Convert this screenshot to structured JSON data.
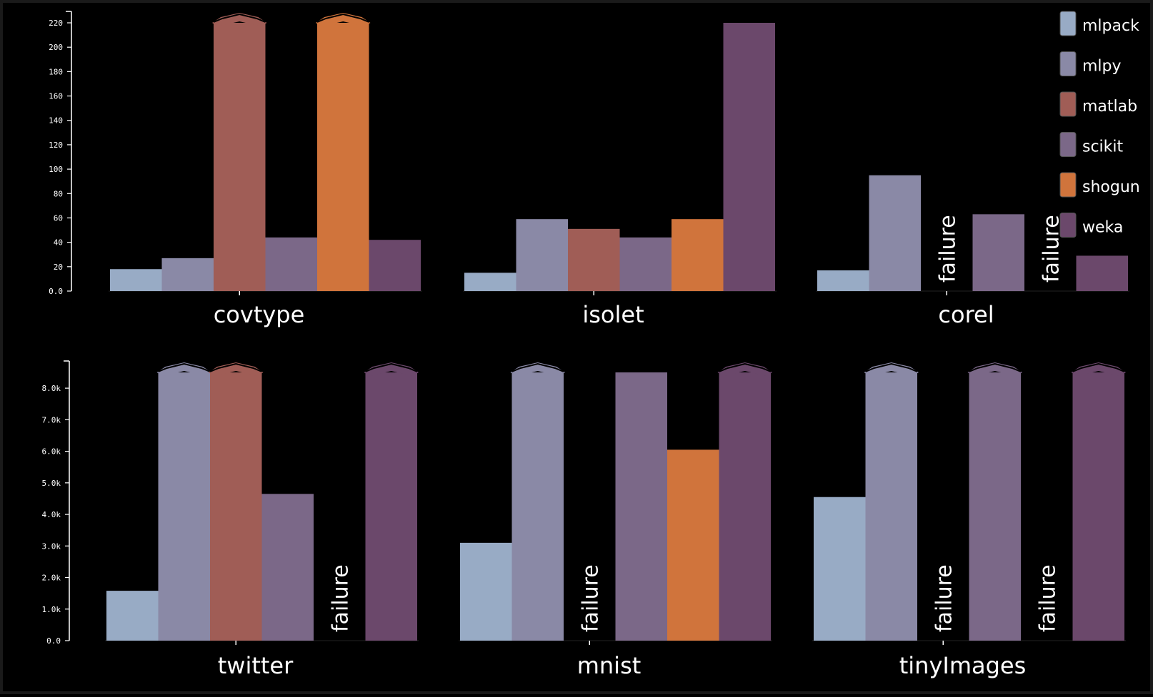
{
  "chart_data": [
    {
      "type": "bar",
      "ylim": [
        0,
        220
      ],
      "yticks": [
        "0.0",
        "20",
        "40",
        "60",
        "80",
        "100",
        "120",
        "140",
        "160",
        "180",
        "200",
        "220"
      ],
      "grid": false,
      "groups": [
        {
          "label": "covtype",
          "bars": [
            {
              "series": "mlpack",
              "value": 18
            },
            {
              "series": "mlpy",
              "value": 27
            },
            {
              "series": "matlab",
              "value": 220,
              "overflow": true
            },
            {
              "series": "scikit",
              "value": 44
            },
            {
              "series": "shogun",
              "value": 220,
              "overflow": true
            },
            {
              "series": "weka",
              "value": 42
            }
          ]
        },
        {
          "label": "isolet",
          "bars": [
            {
              "series": "mlpack",
              "value": 15
            },
            {
              "series": "mlpy",
              "value": 59
            },
            {
              "series": "matlab",
              "value": 51
            },
            {
              "series": "scikit",
              "value": 44
            },
            {
              "series": "shogun",
              "value": 59
            },
            {
              "series": "weka",
              "value": 220
            }
          ]
        },
        {
          "label": "corel",
          "bars": [
            {
              "series": "mlpack",
              "value": 17
            },
            {
              "series": "mlpy",
              "value": 95
            },
            {
              "series": "matlab",
              "failure": true
            },
            {
              "series": "scikit",
              "value": 63
            },
            {
              "series": "shogun",
              "failure": true
            },
            {
              "series": "weka",
              "value": 29
            }
          ]
        }
      ]
    },
    {
      "type": "bar",
      "ylim": [
        0,
        8500
      ],
      "yticks": [
        "0.0",
        "1.0k",
        "2.0k",
        "3.0k",
        "4.0k",
        "5.0k",
        "6.0k",
        "7.0k",
        "8.0k"
      ],
      "grid": false,
      "groups": [
        {
          "label": "twitter",
          "bars": [
            {
              "series": "mlpack",
              "value": 1580
            },
            {
              "series": "mlpy",
              "value": 8500,
              "overflow": true
            },
            {
              "series": "matlab",
              "value": 8500,
              "overflow": true
            },
            {
              "series": "scikit",
              "value": 4650
            },
            {
              "series": "shogun",
              "failure": true
            },
            {
              "series": "weka",
              "value": 8500,
              "overflow": true
            }
          ]
        },
        {
          "label": "mnist",
          "bars": [
            {
              "series": "mlpack",
              "value": 3100
            },
            {
              "series": "mlpy",
              "value": 8500,
              "overflow": true
            },
            {
              "series": "matlab",
              "failure": true
            },
            {
              "series": "scikit",
              "value": 8500
            },
            {
              "series": "shogun",
              "value": 6050
            },
            {
              "series": "weka",
              "value": 8500,
              "overflow": true
            }
          ]
        },
        {
          "label": "tinyImages",
          "bars": [
            {
              "series": "mlpack",
              "value": 4550
            },
            {
              "series": "mlpy",
              "value": 8500,
              "overflow": true
            },
            {
              "series": "matlab",
              "failure": true
            },
            {
              "series": "scikit",
              "value": 8500,
              "overflow": true
            },
            {
              "series": "shogun",
              "failure": true
            },
            {
              "series": "weka",
              "value": 8500,
              "overflow": true
            }
          ]
        }
      ]
    }
  ],
  "failure_text": "failure",
  "legend": {
    "placement": "top-right",
    "items": [
      {
        "name": "mlpack",
        "color": "#98abc5"
      },
      {
        "name": "mlpy",
        "color": "#8a89a6"
      },
      {
        "name": "matlab",
        "color": "#a05d56"
      },
      {
        "name": "scikit",
        "color": "#7b6888"
      },
      {
        "name": "shogun",
        "color": "#d0743c"
      },
      {
        "name": "weka",
        "color": "#6b486b"
      }
    ]
  }
}
